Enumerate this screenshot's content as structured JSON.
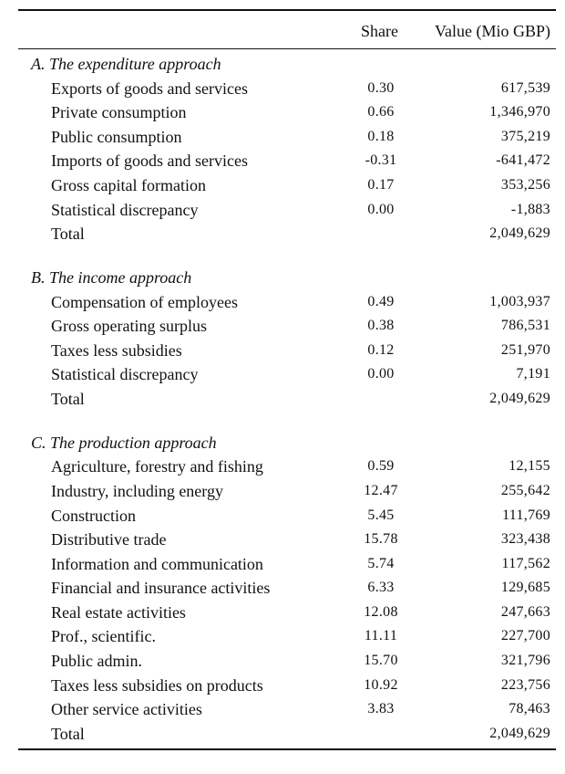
{
  "header": {
    "share_label": "Share",
    "value_label": "Value (Mio GBP)"
  },
  "sections": [
    {
      "title": "A. The expenditure approach",
      "rows": [
        {
          "label": "Exports of goods and services",
          "share": "0.30",
          "value": "617,539"
        },
        {
          "label": "Private consumption",
          "share": "0.66",
          "value": "1,346,970"
        },
        {
          "label": "Public consumption",
          "share": "0.18",
          "value": "375,219"
        },
        {
          "label": "Imports of goods and services",
          "share": "-0.31",
          "value": "-641,472"
        },
        {
          "label": "Gross capital formation",
          "share": "0.17",
          "value": "353,256"
        },
        {
          "label": "Statistical discrepancy",
          "share": "0.00",
          "value": "-1,883"
        },
        {
          "label": "Total",
          "share": "",
          "value": "2,049,629"
        }
      ]
    },
    {
      "title": "B. The income approach",
      "rows": [
        {
          "label": "Compensation of employees",
          "share": "0.49",
          "value": "1,003,937"
        },
        {
          "label": "Gross operating surplus",
          "share": "0.38",
          "value": "786,531"
        },
        {
          "label": "Taxes less subsidies",
          "share": "0.12",
          "value": "251,970"
        },
        {
          "label": "Statistical discrepancy",
          "share": "0.00",
          "value": "7,191"
        },
        {
          "label": "Total",
          "share": "",
          "value": "2,049,629"
        }
      ]
    },
    {
      "title": "C. The production approach",
      "rows": [
        {
          "label": "Agriculture, forestry and fishing",
          "share": "0.59",
          "value": "12,155"
        },
        {
          "label": "Industry, including energy",
          "share": "12.47",
          "value": "255,642"
        },
        {
          "label": "Construction",
          "share": "5.45",
          "value": "111,769"
        },
        {
          "label": "Distributive trade",
          "share": "15.78",
          "value": "323,438"
        },
        {
          "label": "Information and communication",
          "share": "5.74",
          "value": "117,562"
        },
        {
          "label": "Financial and insurance activities",
          "share": "6.33",
          "value": "129,685"
        },
        {
          "label": "Real estate activities",
          "share": "12.08",
          "value": "247,663"
        },
        {
          "label": "Prof., scientific.",
          "share": "11.11",
          "value": "227,700"
        },
        {
          "label": "Public admin.",
          "share": "15.70",
          "value": "321,796"
        },
        {
          "label": "Taxes less subsidies on products",
          "share": "10.92",
          "value": "223,756"
        },
        {
          "label": "Other service activities",
          "share": "3.83",
          "value": "78,463"
        },
        {
          "label": "Total",
          "share": "",
          "value": "2,049,629"
        }
      ]
    }
  ]
}
